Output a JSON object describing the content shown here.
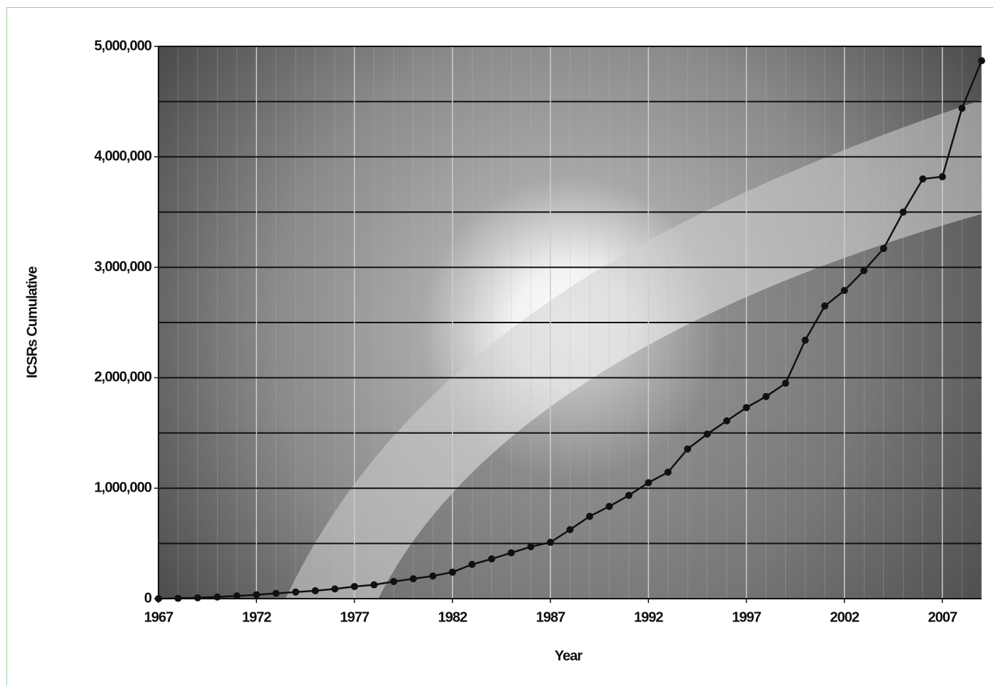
{
  "chart_data": {
    "type": "line",
    "x_label": "Year",
    "y_label": "ICSRs Cumulative",
    "x": [
      1967,
      1968,
      1969,
      1970,
      1971,
      1972,
      1973,
      1974,
      1975,
      1976,
      1977,
      1978,
      1979,
      1980,
      1981,
      1982,
      1983,
      1984,
      1985,
      1986,
      1987,
      1988,
      1989,
      1990,
      1991,
      1992,
      1993,
      1994,
      1995,
      1996,
      1997,
      1998,
      1999,
      2000,
      2001,
      2002,
      2003,
      2004,
      2005,
      2006,
      2007,
      2008,
      2009
    ],
    "values": [
      0,
      3000,
      8000,
      15000,
      25000,
      35000,
      48000,
      60000,
      72000,
      88000,
      110000,
      125000,
      155000,
      180000,
      205000,
      240000,
      310000,
      360000,
      415000,
      470000,
      510000,
      625000,
      745000,
      835000,
      935000,
      1050000,
      1145000,
      1355000,
      1490000,
      1610000,
      1730000,
      1830000,
      1950000,
      2340000,
      2650000,
      2790000,
      2970000,
      3170000,
      3500000,
      3800000,
      3820000,
      4440000,
      4870000
    ],
    "color": "#111111",
    "xlim": [
      1967,
      2009
    ],
    "xticks": [
      1967,
      1972,
      1977,
      1982,
      1987,
      1992,
      1997,
      2002,
      2007
    ],
    "ylim": [
      0,
      5000000
    ],
    "yticks": [
      0,
      {
        "value": 1000000,
        "label": "1,000,000"
      },
      {
        "value": 2000000,
        "label": "2,000,000"
      },
      {
        "value": 3000000,
        "label": "3,000,000"
      },
      {
        "value": 4000000,
        "label": "4,000,000"
      },
      {
        "value": 5000000,
        "label": "5,000,000"
      }
    ],
    "y_minor_ticks": [
      500000,
      1500000,
      2500000,
      3500000,
      4500000
    ],
    "x_minor_ticks": [
      1967,
      1968,
      1969,
      1970,
      1971,
      1972,
      1973,
      1974,
      1975,
      1976,
      1977,
      1978,
      1979,
      1980,
      1981,
      1982,
      1983,
      1984,
      1985,
      1986,
      1987,
      1988,
      1989,
      1990,
      1991,
      1992,
      1993,
      1994,
      1995,
      1996,
      1997,
      1998,
      1999,
      2000,
      2001,
      2002,
      2003,
      2004,
      2005,
      2006,
      2007,
      2008,
      2009
    ],
    "grid": true
  }
}
